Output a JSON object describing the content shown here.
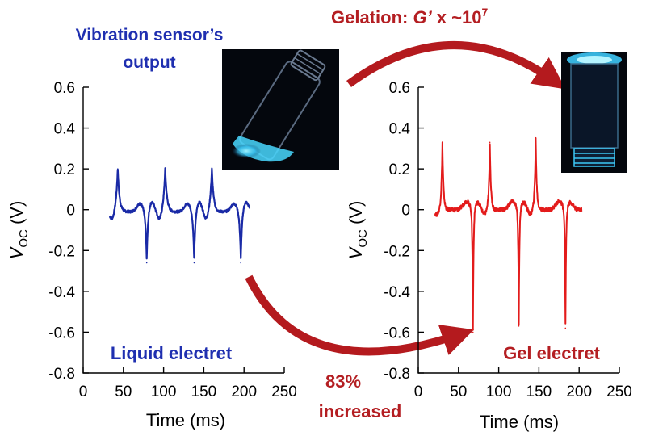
{
  "header": {
    "sensor_title_line1": "Vibration sensor’s",
    "sensor_title_line2": "output",
    "gelation_prefix": "Gelation: ",
    "gelation_var": "G’",
    "gelation_mid": " x ~10",
    "gelation_exp": "7"
  },
  "increase_label_line1": "83%",
  "increase_label_line2": "increased",
  "colors": {
    "liquid": "#1a2aa6",
    "gel": "#e31b1b",
    "label_blue": "#1f2fb0",
    "label_red": "#b41e22",
    "arrow": "#b41a1e"
  },
  "chart_data": [
    {
      "type": "line",
      "panel": "left",
      "inset_label": "Liquid electret",
      "xlabel": "Time (ms)",
      "ylabel_main": "V",
      "ylabel_sub": "OC",
      "ylabel_unit": " (V)",
      "xlim": [
        0,
        250
      ],
      "ylim": [
        -0.8,
        0.6
      ],
      "xticks": [
        0,
        50,
        100,
        150,
        200,
        250
      ],
      "yticks": [
        0.6,
        0.4,
        0.2,
        0,
        -0.2,
        -0.4,
        -0.6,
        -0.8
      ],
      "ytick_labels": [
        "0.6",
        "0.4",
        "0.2",
        "0",
        "-0.2",
        "-0.4",
        "-0.6",
        "-0.8"
      ],
      "xtick_labels": [
        "0",
        "50",
        "100",
        "150",
        "200",
        "250"
      ],
      "series": [
        {
          "x_range": [
            33,
            207
          ],
          "baseline": -0.01,
          "pos_peaks": [
            {
              "x": 43,
              "y": 0.2
            },
            {
              "x": 102,
              "y": 0.2
            },
            {
              "x": 160,
              "y": 0.2
            }
          ],
          "neg_peaks": [
            {
              "x": 79,
              "y": -0.26
            },
            {
              "x": 138,
              "y": -0.26
            },
            {
              "x": 196,
              "y": -0.26
            }
          ]
        }
      ]
    },
    {
      "type": "line",
      "panel": "right",
      "inset_label": "Gel electret",
      "xlabel": "Time (ms)",
      "ylabel_main": "V",
      "ylabel_sub": "OC",
      "ylabel_unit": " (V)",
      "xlim": [
        0,
        250
      ],
      "ylim": [
        -0.8,
        0.6
      ],
      "xticks": [
        0,
        50,
        100,
        150,
        200,
        250
      ],
      "yticks": [
        0.6,
        0.4,
        0.2,
        0,
        -0.2,
        -0.4,
        -0.6,
        -0.8
      ],
      "ytick_labels": [
        "0.6",
        "0.4",
        "0.2",
        "0",
        "-0.2",
        "-0.4",
        "-0.6",
        "-0.8"
      ],
      "xtick_labels": [
        "0",
        "50",
        "100",
        "150",
        "200",
        "250"
      ],
      "series": [
        {
          "x_range": [
            21,
            203
          ],
          "baseline": 0.0,
          "pos_peaks": [
            {
              "x": 30,
              "y": 0.33
            },
            {
              "x": 89,
              "y": 0.33
            },
            {
              "x": 146,
              "y": 0.35
            }
          ],
          "neg_peaks": [
            {
              "x": 68,
              "y": -0.6
            },
            {
              "x": 125,
              "y": -0.57
            },
            {
              "x": 183,
              "y": -0.58
            }
          ]
        }
      ]
    }
  ]
}
